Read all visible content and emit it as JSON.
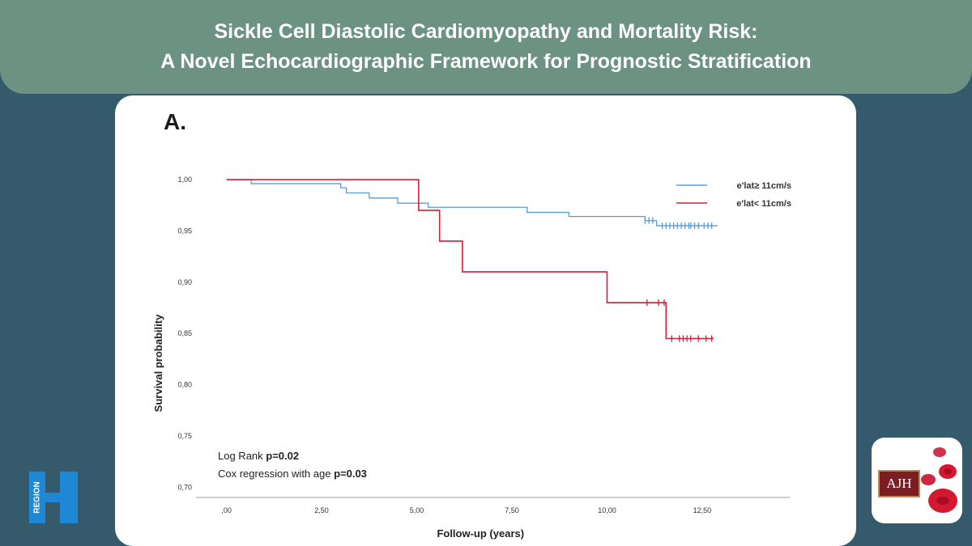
{
  "header": {
    "title_line1": "Sickle Cell Diastolic Cardiomyopathy and Mortality Risk:",
    "title_line2": "A Novel Echocardiographic Framework for Prognostic Stratification"
  },
  "panel_label": "A.",
  "stats": {
    "log_rank_prefix": "Log Rank ",
    "log_rank_value": "p=0.02",
    "cox_prefix": "Cox regression with age ",
    "cox_value": "p=0.03"
  },
  "logos": {
    "left_text": "REGION",
    "right_text": "AJH"
  },
  "chart_data": {
    "type": "line",
    "xlabel": "Follow-up (years)",
    "ylabel": "Survival probability",
    "xlim": [
      -0.8,
      14.8
    ],
    "ylim": [
      0.69,
      1.015
    ],
    "x_ticks": [
      0,
      2.5,
      5,
      7.5,
      10,
      12.5
    ],
    "x_tick_labels": [
      ",00",
      "2,50",
      "5,00",
      "7,50",
      "10,00",
      "12,50"
    ],
    "y_ticks": [
      1.0,
      0.95,
      0.9,
      0.85,
      0.8,
      0.75,
      0.7
    ],
    "y_tick_labels": [
      "1,00",
      "0,95",
      "0,90",
      "0,85",
      "0,80",
      "0,75",
      "0,70"
    ],
    "legend_position": "top-right",
    "series": [
      {
        "name": "e'lat≥ 11cm/s",
        "color": "#5b9bd5",
        "steps": [
          [
            0,
            1.0
          ],
          [
            0.65,
            0.996
          ],
          [
            3.0,
            0.992
          ],
          [
            3.15,
            0.987
          ],
          [
            3.75,
            0.982
          ],
          [
            4.5,
            0.977
          ],
          [
            5.3,
            0.973
          ],
          [
            7.9,
            0.968
          ],
          [
            9.0,
            0.964
          ],
          [
            11.0,
            0.96
          ],
          [
            11.3,
            0.955
          ],
          [
            12.9,
            0.955
          ]
        ],
        "censored": [
          11.0,
          11.1,
          11.2,
          11.45,
          11.55,
          11.65,
          11.75,
          11.85,
          11.95,
          12.05,
          12.15,
          12.2,
          12.3,
          12.4,
          12.55,
          12.65,
          12.75
        ]
      },
      {
        "name": "e'lat< 11cm/s",
        "color": "#d0203a",
        "steps": [
          [
            0,
            1.0
          ],
          [
            5.05,
            0.97
          ],
          [
            5.6,
            0.94
          ],
          [
            6.2,
            0.91
          ],
          [
            10.0,
            0.88
          ],
          [
            11.55,
            0.845
          ],
          [
            12.8,
            0.845
          ]
        ],
        "censored": [
          11.05,
          11.35,
          11.5,
          11.7,
          11.9,
          12.0,
          12.1,
          12.2,
          12.4,
          12.6,
          12.75
        ]
      }
    ]
  }
}
